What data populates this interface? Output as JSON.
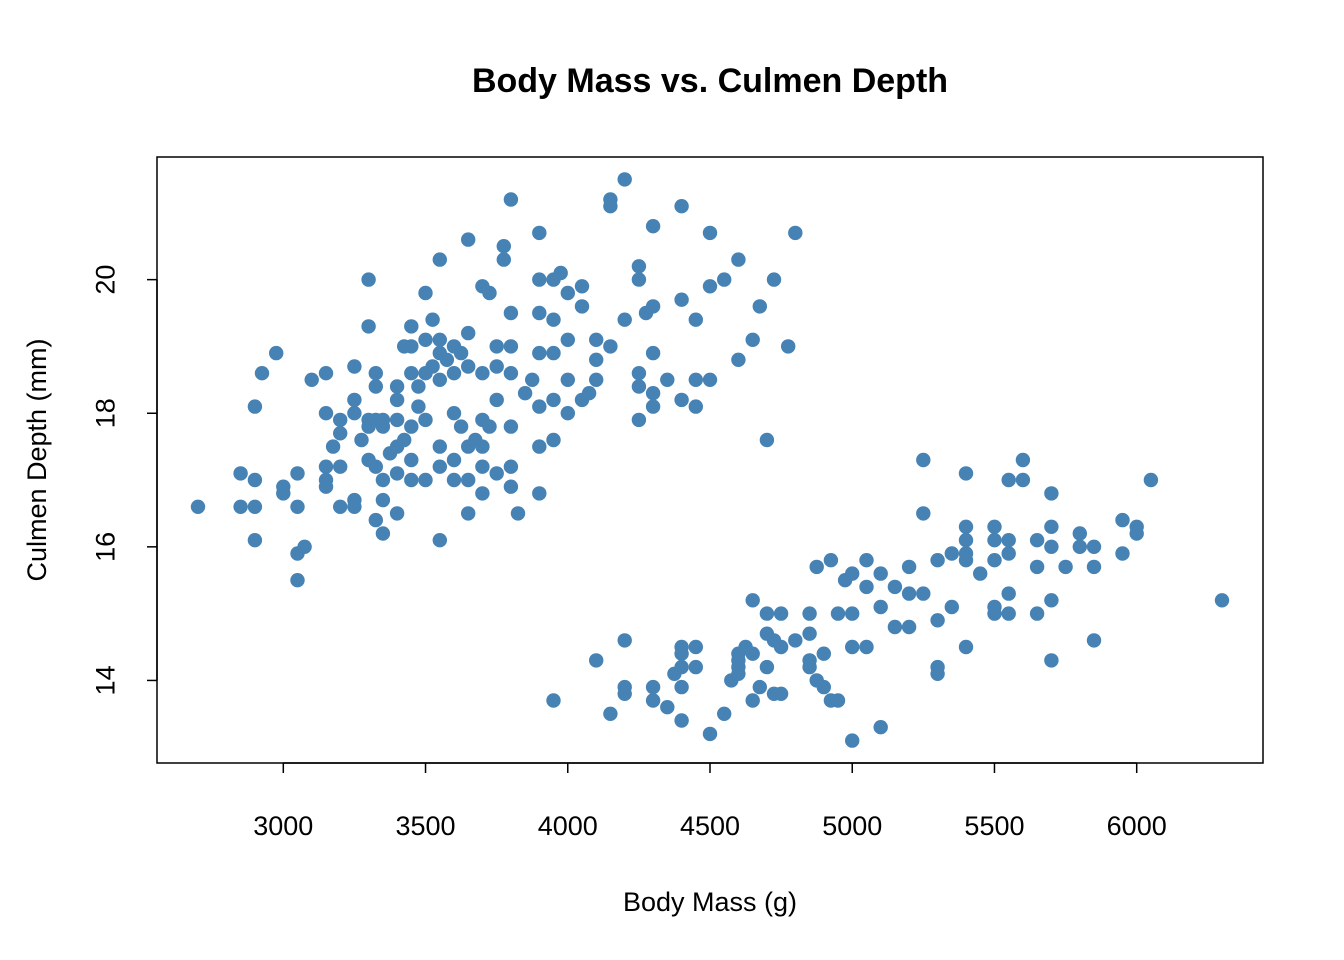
{
  "chart_data": {
    "type": "scatter",
    "title": "Body Mass vs. Culmen Depth",
    "xlabel": "Body Mass (g)",
    "ylabel": "Culmen Depth (mm)",
    "xlim": [
      2700,
      6300
    ],
    "ylim": [
      13.1,
      21.5
    ],
    "xticks": [
      3000,
      3500,
      4000,
      4500,
      5000,
      5500,
      6000
    ],
    "yticks": [
      14,
      16,
      18,
      20
    ],
    "grid": false,
    "point_color": "#4682B4",
    "series": [
      {
        "points": [
          [
            2700,
            16.6
          ],
          [
            2850,
            17.1
          ],
          [
            2850,
            16.6
          ],
          [
            2900,
            18.1
          ],
          [
            2900,
            17.0
          ],
          [
            2900,
            16.6
          ],
          [
            2900,
            16.1
          ],
          [
            2925,
            18.6
          ],
          [
            2975,
            18.9
          ],
          [
            3000,
            16.9
          ],
          [
            3000,
            16.8
          ],
          [
            3050,
            17.1
          ],
          [
            3050,
            16.6
          ],
          [
            3050,
            15.9
          ],
          [
            3050,
            15.5
          ],
          [
            3075,
            16.0
          ],
          [
            3100,
            18.5
          ],
          [
            3150,
            18.6
          ],
          [
            3150,
            18.0
          ],
          [
            3150,
            17.2
          ],
          [
            3150,
            17.0
          ],
          [
            3150,
            16.9
          ],
          [
            3175,
            17.5
          ],
          [
            3200,
            17.9
          ],
          [
            3200,
            17.7
          ],
          [
            3200,
            17.2
          ],
          [
            3200,
            16.6
          ],
          [
            3250,
            18.7
          ],
          [
            3250,
            18.2
          ],
          [
            3250,
            18.0
          ],
          [
            3250,
            16.7
          ],
          [
            3250,
            16.6
          ],
          [
            3275,
            17.6
          ],
          [
            3300,
            20.0
          ],
          [
            3300,
            19.3
          ],
          [
            3300,
            17.9
          ],
          [
            3300,
            17.8
          ],
          [
            3300,
            17.3
          ],
          [
            3325,
            18.6
          ],
          [
            3325,
            18.4
          ],
          [
            3325,
            17.9
          ],
          [
            3325,
            17.2
          ],
          [
            3325,
            16.4
          ],
          [
            3350,
            17.9
          ],
          [
            3350,
            17.8
          ],
          [
            3350,
            17.0
          ],
          [
            3350,
            16.7
          ],
          [
            3350,
            16.2
          ],
          [
            3375,
            17.4
          ],
          [
            3400,
            18.4
          ],
          [
            3400,
            18.2
          ],
          [
            3400,
            17.9
          ],
          [
            3400,
            17.5
          ],
          [
            3400,
            17.1
          ],
          [
            3400,
            16.5
          ],
          [
            3425,
            19.0
          ],
          [
            3425,
            17.6
          ],
          [
            3450,
            19.3
          ],
          [
            3450,
            19.0
          ],
          [
            3450,
            18.6
          ],
          [
            3450,
            17.8
          ],
          [
            3450,
            17.3
          ],
          [
            3450,
            17.0
          ],
          [
            3475,
            18.4
          ],
          [
            3475,
            18.1
          ],
          [
            3500,
            19.8
          ],
          [
            3500,
            19.1
          ],
          [
            3500,
            18.6
          ],
          [
            3500,
            17.9
          ],
          [
            3500,
            17.0
          ],
          [
            3525,
            18.7
          ],
          [
            3525,
            19.4
          ],
          [
            3550,
            20.3
          ],
          [
            3550,
            19.1
          ],
          [
            3550,
            18.9
          ],
          [
            3550,
            18.5
          ],
          [
            3550,
            17.5
          ],
          [
            3550,
            17.2
          ],
          [
            3550,
            16.1
          ],
          [
            3575,
            18.8
          ],
          [
            3600,
            19.0
          ],
          [
            3600,
            18.6
          ],
          [
            3600,
            18.0
          ],
          [
            3600,
            17.3
          ],
          [
            3600,
            17.0
          ],
          [
            3625,
            18.9
          ],
          [
            3625,
            17.8
          ],
          [
            3650,
            20.6
          ],
          [
            3650,
            19.2
          ],
          [
            3650,
            18.7
          ],
          [
            3650,
            17.5
          ],
          [
            3650,
            17.0
          ],
          [
            3650,
            16.5
          ],
          [
            3675,
            17.6
          ],
          [
            3700,
            19.9
          ],
          [
            3700,
            18.6
          ],
          [
            3700,
            17.9
          ],
          [
            3700,
            17.2
          ],
          [
            3700,
            16.8
          ],
          [
            3700,
            17.5
          ],
          [
            3725,
            19.8
          ],
          [
            3725,
            17.8
          ],
          [
            3750,
            19.0
          ],
          [
            3750,
            18.2
          ],
          [
            3750,
            18.7
          ],
          [
            3750,
            17.1
          ],
          [
            3775,
            20.3
          ],
          [
            3775,
            20.5
          ],
          [
            3800,
            21.2
          ],
          [
            3800,
            19.5
          ],
          [
            3800,
            19.0
          ],
          [
            3800,
            18.6
          ],
          [
            3800,
            17.8
          ],
          [
            3800,
            17.2
          ],
          [
            3800,
            16.9
          ],
          [
            3825,
            16.5
          ],
          [
            3850,
            18.3
          ],
          [
            3875,
            18.5
          ],
          [
            3900,
            20.7
          ],
          [
            3900,
            20.0
          ],
          [
            3900,
            19.5
          ],
          [
            3900,
            18.9
          ],
          [
            3900,
            18.1
          ],
          [
            3900,
            17.5
          ],
          [
            3900,
            16.8
          ],
          [
            3950,
            20.0
          ],
          [
            3950,
            19.4
          ],
          [
            3950,
            18.9
          ],
          [
            3950,
            18.2
          ],
          [
            3950,
            17.6
          ],
          [
            3975,
            20.1
          ],
          [
            4000,
            19.8
          ],
          [
            4000,
            19.1
          ],
          [
            4000,
            18.5
          ],
          [
            4000,
            18.0
          ],
          [
            4050,
            19.9
          ],
          [
            4050,
            19.6
          ],
          [
            4050,
            18.2
          ],
          [
            4075,
            18.3
          ],
          [
            4100,
            19.1
          ],
          [
            4100,
            18.5
          ],
          [
            4100,
            18.8
          ],
          [
            4150,
            19.0
          ],
          [
            4150,
            21.2
          ],
          [
            4150,
            21.1
          ],
          [
            4200,
            21.5
          ],
          [
            4200,
            19.4
          ],
          [
            4250,
            20.2
          ],
          [
            4250,
            20.0
          ],
          [
            4250,
            18.6
          ],
          [
            4250,
            18.4
          ],
          [
            4250,
            17.9
          ],
          [
            4275,
            19.5
          ],
          [
            4300,
            20.8
          ],
          [
            4300,
            19.6
          ],
          [
            4300,
            18.9
          ],
          [
            4300,
            18.3
          ],
          [
            4300,
            18.1
          ],
          [
            4350,
            18.5
          ],
          [
            4400,
            21.1
          ],
          [
            4400,
            19.7
          ],
          [
            4400,
            18.2
          ],
          [
            4450,
            19.4
          ],
          [
            4450,
            18.5
          ],
          [
            4450,
            18.1
          ],
          [
            4500,
            20.7
          ],
          [
            4500,
            18.5
          ],
          [
            4500,
            19.9
          ],
          [
            4550,
            20.0
          ],
          [
            4600,
            20.3
          ],
          [
            4600,
            18.8
          ],
          [
            4650,
            19.1
          ],
          [
            4675,
            19.6
          ],
          [
            4700,
            17.6
          ],
          [
            4725,
            20.0
          ],
          [
            4775,
            19.0
          ],
          [
            4800,
            20.7
          ]
        ]
      },
      {
        "points": [
          [
            3950,
            13.7
          ],
          [
            4100,
            14.3
          ],
          [
            4150,
            13.5
          ],
          [
            4200,
            14.6
          ],
          [
            4200,
            13.9
          ],
          [
            4200,
            13.8
          ],
          [
            4300,
            13.9
          ],
          [
            4300,
            13.7
          ],
          [
            4350,
            13.6
          ],
          [
            4375,
            14.1
          ],
          [
            4400,
            14.5
          ],
          [
            4400,
            14.4
          ],
          [
            4400,
            14.2
          ],
          [
            4400,
            13.9
          ],
          [
            4400,
            13.4
          ],
          [
            4450,
            14.5
          ],
          [
            4450,
            14.2
          ],
          [
            4500,
            13.2
          ],
          [
            4550,
            13.5
          ],
          [
            4575,
            14.0
          ],
          [
            4600,
            14.4
          ],
          [
            4600,
            14.3
          ],
          [
            4600,
            14.2
          ],
          [
            4600,
            14.1
          ],
          [
            4625,
            14.5
          ],
          [
            4650,
            15.2
          ],
          [
            4650,
            14.4
          ],
          [
            4650,
            13.7
          ],
          [
            4675,
            13.9
          ],
          [
            4700,
            15.0
          ],
          [
            4700,
            14.7
          ],
          [
            4700,
            14.2
          ],
          [
            4725,
            14.6
          ],
          [
            4725,
            13.8
          ],
          [
            4750,
            15.0
          ],
          [
            4750,
            14.5
          ],
          [
            4750,
            13.8
          ],
          [
            4800,
            14.6
          ],
          [
            4850,
            15.0
          ],
          [
            4850,
            14.7
          ],
          [
            4850,
            14.3
          ],
          [
            4850,
            14.2
          ],
          [
            4875,
            15.7
          ],
          [
            4875,
            14.0
          ],
          [
            4900,
            14.4
          ],
          [
            4900,
            13.9
          ],
          [
            4925,
            15.8
          ],
          [
            4925,
            13.7
          ],
          [
            4950,
            15.0
          ],
          [
            4950,
            13.7
          ],
          [
            4975,
            15.5
          ],
          [
            5000,
            15.6
          ],
          [
            5000,
            15.0
          ],
          [
            5000,
            14.5
          ],
          [
            5000,
            13.1
          ],
          [
            5050,
            15.8
          ],
          [
            5050,
            15.4
          ],
          [
            5050,
            14.5
          ],
          [
            5100,
            15.6
          ],
          [
            5100,
            15.1
          ],
          [
            5100,
            13.3
          ],
          [
            5150,
            15.4
          ],
          [
            5150,
            14.8
          ],
          [
            5200,
            15.7
          ],
          [
            5200,
            15.3
          ],
          [
            5200,
            14.8
          ],
          [
            5250,
            17.3
          ],
          [
            5250,
            16.5
          ],
          [
            5250,
            15.3
          ],
          [
            5300,
            15.8
          ],
          [
            5300,
            14.9
          ],
          [
            5300,
            14.2
          ],
          [
            5300,
            14.1
          ],
          [
            5350,
            15.9
          ],
          [
            5350,
            15.1
          ],
          [
            5400,
            17.1
          ],
          [
            5400,
            16.3
          ],
          [
            5400,
            16.1
          ],
          [
            5400,
            15.9
          ],
          [
            5400,
            15.8
          ],
          [
            5400,
            14.5
          ],
          [
            5450,
            15.6
          ],
          [
            5500,
            16.3
          ],
          [
            5500,
            16.1
          ],
          [
            5500,
            15.8
          ],
          [
            5500,
            15.1
          ],
          [
            5500,
            15.0
          ],
          [
            5550,
            17.0
          ],
          [
            5550,
            16.1
          ],
          [
            5550,
            15.9
          ],
          [
            5550,
            15.3
          ],
          [
            5550,
            15.0
          ],
          [
            5600,
            17.3
          ],
          [
            5600,
            17.0
          ],
          [
            5650,
            16.1
          ],
          [
            5650,
            15.7
          ],
          [
            5650,
            15.0
          ],
          [
            5700,
            16.8
          ],
          [
            5700,
            16.3
          ],
          [
            5700,
            16.0
          ],
          [
            5700,
            15.2
          ],
          [
            5700,
            14.3
          ],
          [
            5750,
            15.7
          ],
          [
            5800,
            16.2
          ],
          [
            5800,
            16.0
          ],
          [
            5850,
            16.0
          ],
          [
            5850,
            15.7
          ],
          [
            5850,
            14.6
          ],
          [
            5950,
            16.4
          ],
          [
            5950,
            15.9
          ],
          [
            6000,
            16.3
          ],
          [
            6000,
            16.2
          ],
          [
            6050,
            17.0
          ],
          [
            6300,
            15.2
          ]
        ]
      }
    ]
  }
}
